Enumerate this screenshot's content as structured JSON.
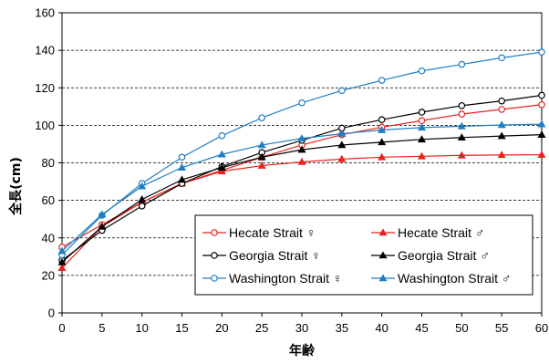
{
  "chart_data": {
    "type": "line",
    "xlabel": "年齢",
    "ylabel": "全長(cm)",
    "xlim": [
      0,
      60
    ],
    "ylim": [
      0,
      160
    ],
    "xticks": [
      0,
      5,
      10,
      15,
      20,
      25,
      30,
      35,
      40,
      45,
      50,
      55,
      60
    ],
    "yticks": [
      0,
      20,
      40,
      60,
      80,
      100,
      120,
      140,
      160
    ],
    "grid": "horizontal-dashed",
    "legend_position": "lower-right",
    "x": [
      0,
      5,
      10,
      15,
      20,
      25,
      30,
      35,
      40,
      45,
      50,
      55,
      60
    ],
    "series": [
      {
        "name": "Hecate Strait ♀",
        "color": "#e8231e",
        "marker": "circle-open",
        "values": [
          35,
          47,
          59,
          69,
          76,
          83,
          89.5,
          95,
          99,
          102.5,
          106,
          108.5,
          111
        ]
      },
      {
        "name": "Hecate Strait ♂",
        "color": "#e8231e",
        "marker": "triangle-filled",
        "values": [
          24,
          46,
          59,
          69,
          75.5,
          78.5,
          80.5,
          82,
          83,
          83.5,
          84,
          84.2,
          84.3
        ]
      },
      {
        "name": "Georgia Strait ♀",
        "color": "#000000",
        "marker": "circle-open",
        "values": [
          28,
          44,
          57,
          69,
          78,
          85.5,
          92,
          98.5,
          103,
          107,
          110.5,
          113,
          116
        ]
      },
      {
        "name": "Georgia Strait ♂",
        "color": "#000000",
        "marker": "triangle-filled",
        "values": [
          27,
          46,
          60.5,
          71,
          77.5,
          83,
          87,
          89.5,
          91,
          92.5,
          93.5,
          94.3,
          95
        ]
      },
      {
        "name": "Washington Strait ♀",
        "color": "#1f7fc4",
        "marker": "circle-open",
        "values": [
          31,
          52,
          69,
          83,
          94.5,
          104,
          112,
          118.5,
          124,
          129,
          132.5,
          136,
          139
        ]
      },
      {
        "name": "Washington Strait ♂",
        "color": "#1f7fc4",
        "marker": "triangle-filled",
        "values": [
          33,
          52.5,
          67.5,
          77.5,
          84.5,
          89.5,
          93,
          95.5,
          97.5,
          98.8,
          99.5,
          100.2,
          100.6
        ]
      }
    ]
  }
}
